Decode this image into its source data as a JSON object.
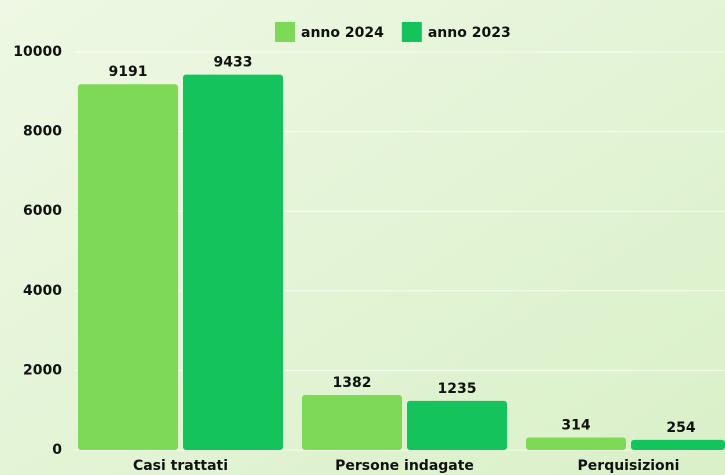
{
  "chart_data": {
    "type": "bar",
    "categories": [
      "Casi trattati",
      "Persone indagate",
      "Perquisizioni"
    ],
    "series": [
      {
        "name": "anno 2024",
        "color": "#7ed957",
        "values": [
          9191,
          1382,
          314
        ]
      },
      {
        "name": "anno 2023",
        "color": "#14c35c",
        "values": [
          9433,
          1235,
          254
        ]
      }
    ],
    "ylim": [
      0,
      10000
    ],
    "yticks": [
      0,
      2000,
      4000,
      6000,
      8000,
      10000
    ],
    "grid": true,
    "legend": "top"
  }
}
